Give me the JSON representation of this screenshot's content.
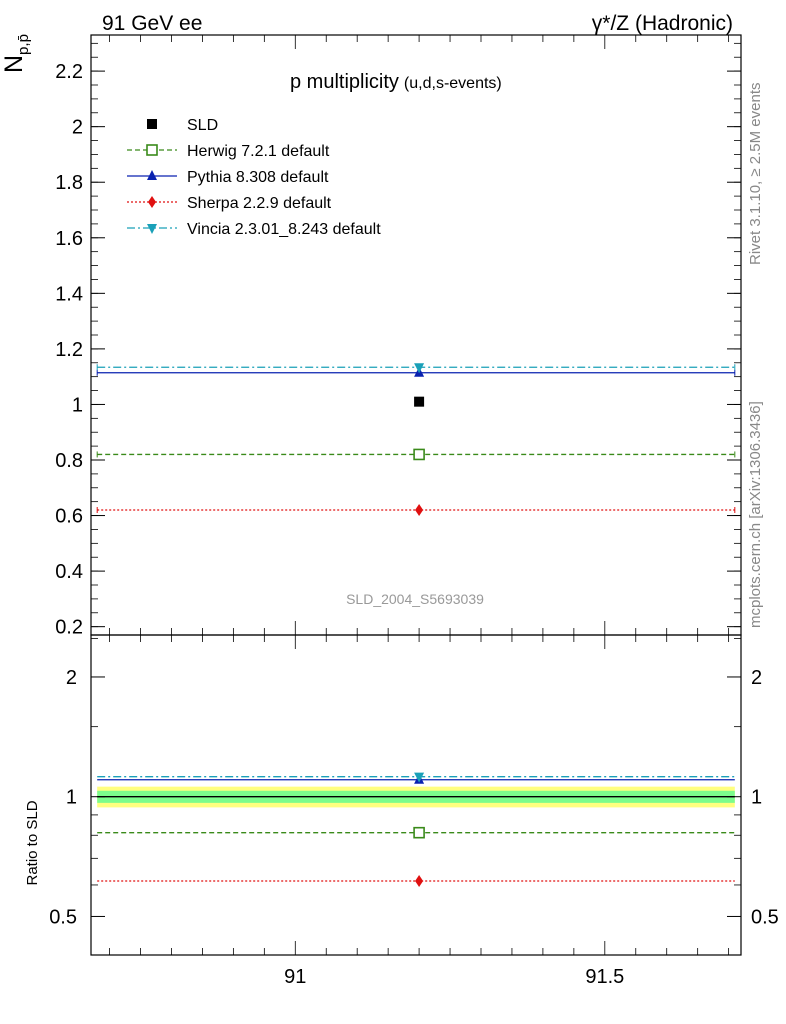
{
  "header": {
    "left": "91 GeV ee",
    "right": "γ*/Z (Hadronic)"
  },
  "side_labels": {
    "rivet": "Rivet 3.1.10, ≥ 2.5M events",
    "mcplots": "mcplots.cern.ch [arXiv:1306.3436]"
  },
  "chart_data": [
    {
      "type": "scatter",
      "title": "p multiplicity",
      "subtitle": "(u,d,s-events)",
      "ylabel_main": "N",
      "ylabel_sub": "p,p̄",
      "watermark": "SLD_2004_S5693039",
      "xlim": [
        90.67,
        91.72
      ],
      "ylim": [
        0.17,
        2.33
      ],
      "x_ticks": [
        91,
        91.5
      ],
      "x_tick_labels": [
        "91",
        "91.5"
      ],
      "y_ticks": [
        0.2,
        0.4,
        0.6,
        0.8,
        1,
        1.2,
        1.4,
        1.6,
        1.8,
        2,
        2.2
      ],
      "y_tick_labels": [
        "0.2",
        "0.4",
        "0.6",
        "0.8",
        "1",
        "1.2",
        "1.4",
        "1.6",
        "1.8",
        "2",
        "2.2"
      ],
      "legend_position": "top-left",
      "data_point": {
        "name": "SLD",
        "x": 91.2,
        "y": 1.01,
        "color": "#000000",
        "marker": "square"
      },
      "series": [
        {
          "name": "Herwig 7.2.1 default",
          "x_range": [
            90.68,
            91.71
          ],
          "x": 91.2,
          "y": 0.82,
          "color": "#3a8a1a",
          "line": "dashed",
          "marker": "open-square"
        },
        {
          "name": "Pythia 8.308 default",
          "x_range": [
            90.68,
            91.71
          ],
          "x": 91.2,
          "y": 1.114,
          "color": "#0a22b0",
          "line": "solid",
          "marker": "triangle-up"
        },
        {
          "name": "Sherpa 2.2.9 default",
          "x_range": [
            90.68,
            91.71
          ],
          "x": 91.2,
          "y": 0.62,
          "color": "#e01010",
          "line": "dotted",
          "marker": "diamond"
        },
        {
          "name": "Vincia 2.3.01_8.243 default",
          "x_range": [
            90.68,
            91.71
          ],
          "x": 91.2,
          "y": 1.134,
          "color": "#1aa0b8",
          "line": "dashdot",
          "marker": "triangle-down"
        }
      ]
    },
    {
      "type": "scatter",
      "title": "",
      "ylabel": "Ratio to SLD",
      "scale": "log",
      "xlim": [
        90.67,
        91.72
      ],
      "ylim": [
        0.4,
        2.55
      ],
      "y_ticks": [
        0.5,
        1,
        2
      ],
      "y_tick_labels": [
        "0.5",
        "1",
        "2"
      ],
      "x_ticks": [
        91,
        91.5
      ],
      "x_tick_labels": [
        "91",
        "91.5"
      ],
      "bands": [
        {
          "name": "outer",
          "low": 0.94,
          "high": 1.06,
          "color": "#ffff80"
        },
        {
          "name": "inner",
          "low": 0.965,
          "high": 1.035,
          "color": "#7cfc8c"
        }
      ],
      "series": [
        {
          "name": "Herwig 7.2.1 default",
          "y": 0.812,
          "color": "#3a8a1a",
          "line": "dashed",
          "marker": "open-square"
        },
        {
          "name": "Pythia 8.308 default",
          "y": 1.103,
          "color": "#0a22b0",
          "line": "solid",
          "marker": "triangle-up"
        },
        {
          "name": "Sherpa 2.2.9 default",
          "y": 0.614,
          "color": "#e01010",
          "line": "dotted",
          "marker": "diamond"
        },
        {
          "name": "Vincia 2.3.01_8.243 default",
          "y": 1.123,
          "color": "#1aa0b8",
          "line": "dashdot",
          "marker": "triangle-down"
        },
        {
          "name": "SLD",
          "y": 1.0,
          "color": "#000000",
          "line": "solid",
          "marker": "none"
        }
      ]
    }
  ]
}
